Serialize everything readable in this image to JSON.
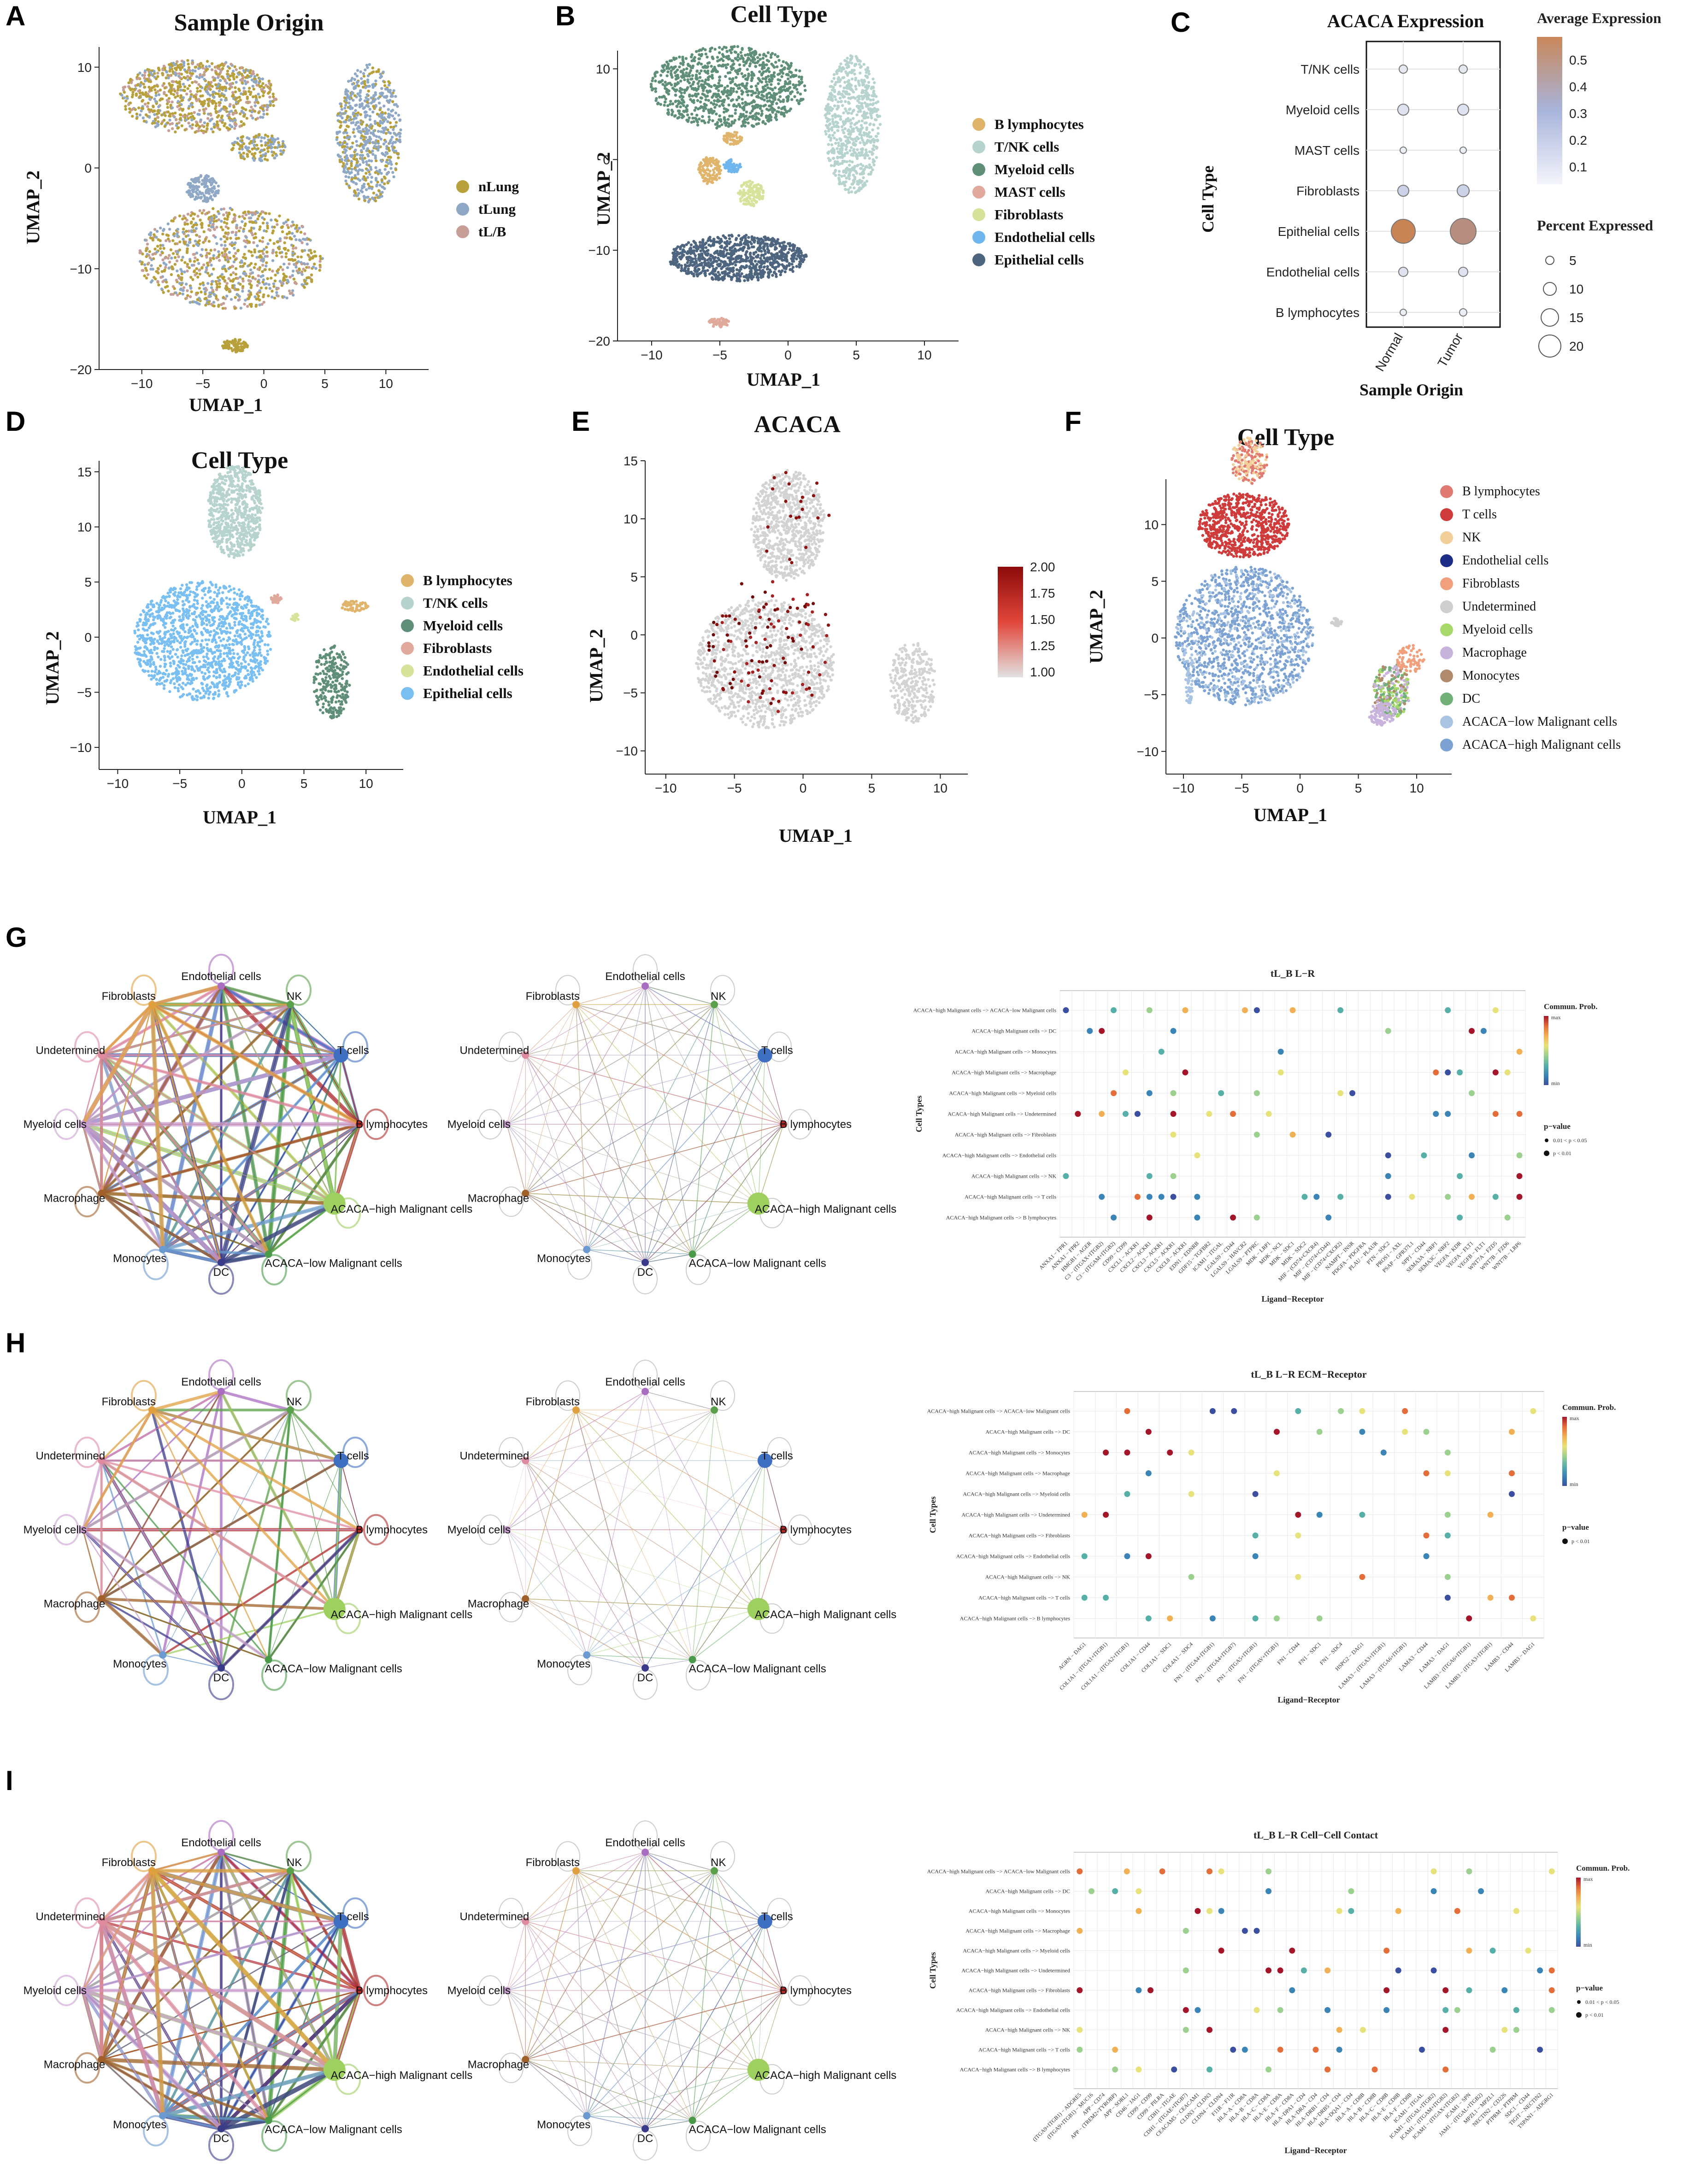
{
  "panels": {
    "A": {
      "letter": "A",
      "title": "Sample Origin",
      "xlabel": "UMAP_1",
      "ylabel": "UMAP_2",
      "xticks": [
        "−10",
        "−5",
        "0",
        "5",
        "10"
      ],
      "yticks": [
        "10",
        "0",
        "−10",
        "−20"
      ],
      "legend": [
        {
          "label": "nLung",
          "color": "#b8a13a"
        },
        {
          "label": "tLung",
          "color": "#8fa8c6"
        },
        {
          "label": "tL/B",
          "color": "#c79e95"
        }
      ]
    },
    "B": {
      "letter": "B",
      "title": "Cell Type",
      "xlabel": "UMAP_1",
      "ylabel": "UMAP_2",
      "xticks": [
        "−10",
        "−5",
        "0",
        "5",
        "10"
      ],
      "yticks": [
        "10",
        "0",
        "−10",
        "−20"
      ],
      "legend": [
        {
          "label": "B lymphocytes",
          "color": "#e0b46a"
        },
        {
          "label": "T/NK cells",
          "color": "#b6d3ce"
        },
        {
          "label": "Myeloid cells",
          "color": "#5f8f78"
        },
        {
          "label": "MAST cells",
          "color": "#e0a99b"
        },
        {
          "label": "Fibroblasts",
          "color": "#d7e29a"
        },
        {
          "label": "Endothelial cells",
          "color": "#6fb6ee"
        },
        {
          "label": "Epithelial cells",
          "color": "#4e6580"
        }
      ]
    },
    "C": {
      "letter": "C",
      "title": "ACACA Expression",
      "xlabel": "Sample Origin",
      "ylabel": "Cell Type",
      "legend_expr_title": "Average Expression",
      "legend_expr_ticks": [
        "0.5",
        "0.4",
        "0.3",
        "0.2",
        "0.1"
      ],
      "legend_pct_title": "Percent Expressed",
      "legend_pct_ticks": [
        "5",
        "10",
        "15",
        "20"
      ]
    },
    "D": {
      "letter": "D",
      "title": "Cell Type",
      "xlabel": "UMAP_1",
      "ylabel": "UMAP_2",
      "xticks": [
        "−10",
        "−5",
        "0",
        "5",
        "10"
      ],
      "yticks": [
        "15",
        "10",
        "5",
        "0",
        "−5",
        "−10"
      ],
      "legend": [
        {
          "label": "B lymphocytes",
          "color": "#e0b46a"
        },
        {
          "label": "T/NK cells",
          "color": "#b6d3ce"
        },
        {
          "label": "Myeloid cells",
          "color": "#5f8f78"
        },
        {
          "label": "Fibroblasts",
          "color": "#e0a99b"
        },
        {
          "label": "Endothelial cells",
          "color": "#d7e29a"
        },
        {
          "label": "Epithelial cells",
          "color": "#79bff2"
        }
      ]
    },
    "E": {
      "letter": "E",
      "title": "ACACA",
      "xlabel": "UMAP_1",
      "ylabel": "UMAP_2",
      "xticks": [
        "−10",
        "−5",
        "0",
        "5",
        "10"
      ],
      "yticks": [
        "15",
        "10",
        "5",
        "0",
        "−5",
        "−10"
      ],
      "colorbar_ticks": [
        "2.00",
        "1.75",
        "1.50",
        "1.25",
        "1.00"
      ]
    },
    "F": {
      "letter": "F",
      "title": "Cell Type",
      "xlabel": "UMAP_1",
      "ylabel": "UMAP_2",
      "xticks": [
        "−10",
        "−5",
        "0",
        "5",
        "10"
      ],
      "yticks": [
        "10",
        "5",
        "0",
        "−5",
        "−10"
      ],
      "legend": [
        {
          "label": "B lymphocytes",
          "color": "#e07a70"
        },
        {
          "label": "T cells",
          "color": "#cf3a3a"
        },
        {
          "label": "NK",
          "color": "#f2cf98"
        },
        {
          "label": "Endothelial cells",
          "color": "#1b2d86"
        },
        {
          "label": "Fibroblasts",
          "color": "#f0a07c"
        },
        {
          "label": "Undetermined",
          "color": "#cfcfcf"
        },
        {
          "label": "Myeloid cells",
          "color": "#a7d86a"
        },
        {
          "label": "Macrophage",
          "color": "#c8b3dc"
        },
        {
          "label": "Monocytes",
          "color": "#b08a6a"
        },
        {
          "label": "DC",
          "color": "#72b07a"
        },
        {
          "label": "ACACA−low Malignant cells",
          "color": "#a9c4e2"
        },
        {
          "label": "ACACA−high Malignant cells",
          "color": "#7ba2d2"
        }
      ]
    },
    "G": {
      "letter": "G",
      "title": "tL_B L−R"
    },
    "H": {
      "letter": "H",
      "title": "tL_B L−R ECM−Receptor"
    },
    "I": {
      "letter": "I",
      "title": "tL_B L−R Cell−Cell Contact"
    }
  },
  "network_nodes": [
    {
      "label": "Endothelial cells",
      "color": "#a96cc0"
    },
    {
      "label": "NK",
      "color": "#5aa04a"
    },
    {
      "label": "T cells",
      "color": "#3f6fc0"
    },
    {
      "label": "B lymphocytes",
      "color": "#b02a2a"
    },
    {
      "label": "ACACA−high Malignant cells",
      "color": "#9ed060"
    },
    {
      "label": "ACACA−low Malignant cells",
      "color": "#4a9a4a"
    },
    {
      "label": "DC",
      "color": "#3a3a8a"
    },
    {
      "label": "Monocytes",
      "color": "#6a9ad0"
    },
    {
      "label": "Macrophage",
      "color": "#a0602a"
    },
    {
      "label": "Myeloid cells",
      "color": "#c9a0d0"
    },
    {
      "label": "Undetermined",
      "color": "#e08aa0"
    },
    {
      "label": "Fibroblasts",
      "color": "#e0a040"
    }
  ],
  "dotplot": {
    "ylabel": "Cell Types",
    "xlabel": "Ligand−Receptor",
    "legend_title": "Commun. Prob.",
    "legend_max": "max",
    "legend_min": "min",
    "pvalue_title": "p−value",
    "pvalue_G": [
      "0.01 < p < 0.05",
      "p < 0.01"
    ],
    "pvalue_H": [
      "p < 0.01"
    ],
    "pvalue_I": [
      "0.01 < p < 0.05",
      "p < 0.01"
    ],
    "rows": [
      "ACACA−high Malignant cells −> ACACA−low Malignant cells",
      "ACACA−high Malignant cells −> DC",
      "ACACA−high Malignant cells −> Monocytes",
      "ACACA−high Malignant cells −> Macrophage",
      "ACACA−high Malignant cells −> Myeloid cells",
      "ACACA−high Malignant cells −> Undetermined",
      "ACACA−high Malignant cells −> Fibroblasts",
      "ACACA−high Malignant cells −> Endothelial cells",
      "ACACA−high Malignant cells −> NK",
      "ACACA−high Malignant cells −> T cells",
      "ACACA−high Malignant cells −> B lymphocytes"
    ],
    "cols_G": [
      "ANXA1 − FPR1",
      "ANXA1 − FPR2",
      "HMGB1 − AGER",
      "C3 − (ITGAX+ITGB2)",
      "C3 − (ITGAM+ITGB2)",
      "CD99 − CD99",
      "CXCL1 − ACKR1",
      "CXCL2 − ACKR1",
      "CXCL3 − ACKR1",
      "CXCL5 − ACKR1",
      "CXCL8 − ACKR1",
      "EDN1 − EDNRB",
      "GDF15 − TGFBR2",
      "ICAM1 − ITGAL",
      "LGALS9 − CD44",
      "LGALS9 − HAVCR2",
      "LGALS9 − PTPRC",
      "MDK − LRP1",
      "MDK − NCL",
      "MDK − SDC1",
      "MDK − SDC2",
      "MIF − (CD74+CXCR4)",
      "MIF − (CD74+CD44)",
      "MIF − (CD74+CXCR2)",
      "NAMPT − INSR",
      "PDGFA − PDGFRA",
      "PLAU − PLAUR",
      "PTN − SDC2",
      "PROS1 − AXL",
      "PSAP − GPR37L1",
      "SPP1 − CD44",
      "SEMA3A − NRP1",
      "SEMA3C − NRP2",
      "VEGFA − KDR",
      "VEGFA − FLT1",
      "VEGFB − FLT1",
      "WNT7A − FZD5",
      "WNT7B − FZD6",
      "WNT7B − LRP6"
    ],
    "cols_H": [
      "AGRN − DAG1",
      "COL1A1 − (ITGA1+ITGB1)",
      "COL1A1 − (ITGA2+ITGB1)",
      "COL1A1 − CD44",
      "COL1A1 − SDC1",
      "COL4A1 − SDC4",
      "FN1 − (ITGA4+ITGB1)",
      "FN1 − (ITGA4+ITGB7)",
      "FN1 − (ITGA5+ITGB1)",
      "FN1 − (ITGAV+ITGB1)",
      "FN1 − CD44",
      "FN1 − SDC1",
      "FN1 − SDC4",
      "HSPG2 − DAG1",
      "LAMA3 − (ITGA3+ITGB1)",
      "LAMA3 − (ITGA6+ITGB1)",
      "LAMA3 − CD44",
      "LAMA3 − DAG1",
      "LAMB3 − (ITGA6+ITGB1)",
      "LAMB3 − (ITGA3+ITGB1)",
      "LAMB3 − CD44",
      "LAMB3 − DAG1"
    ],
    "cols_I": [
      "(ITGA9+ITGB1) − ADGRE5",
      "(ITGA9+ITGB1) − MUC16",
      "APP − CD74",
      "APP − (TREM2+TYROBP)",
      "APP − SORL1",
      "CD46 − JAG1",
      "CD99 − CD99",
      "CD99 − PILRA",
      "CDH1 − ITGAE",
      "CDH1 − (ITGAE+ITGB7)",
      "CEACAM5 − CEACAM1",
      "CLDN3 − CLDN3",
      "CLDN4 − CLDN4",
      "F11R − F11R",
      "HLA−A − CD8A",
      "HLA−B − CD8A",
      "HLA−C − CD8A",
      "HLA−E − CD8A",
      "HLA−F − CD8A",
      "HLA−DPA1 − CD4",
      "HLA−DRA − CD4",
      "HLA−DRB1 − CD4",
      "HLA−DRB5 − CD4",
      "HLA−DQA1 − CD4",
      "HLA−A − CD8B",
      "HLA−B − CD8B",
      "HLA−C − CD8B",
      "HLA−E − CD8B",
      "HLA−F − CD8B",
      "ICAM1 − ITGAL",
      "ICAM1 − (ITGAL+ITGB2)",
      "ICAM1 − (ITGAM+ITGB2)",
      "ICAM1 − (ITGAX+ITGB2)",
      "ICAM1 − SPN",
      "JAM1 − (ITGAL+ITGB2)",
      "MPZL1 − MPZL1",
      "NECTIN2 − CD226",
      "PTPRM − PTPRM",
      "SDC1 − CD44",
      "TIGIT − NECTIN2",
      "TSPAN1 − ADGRG1"
    ]
  }
}
